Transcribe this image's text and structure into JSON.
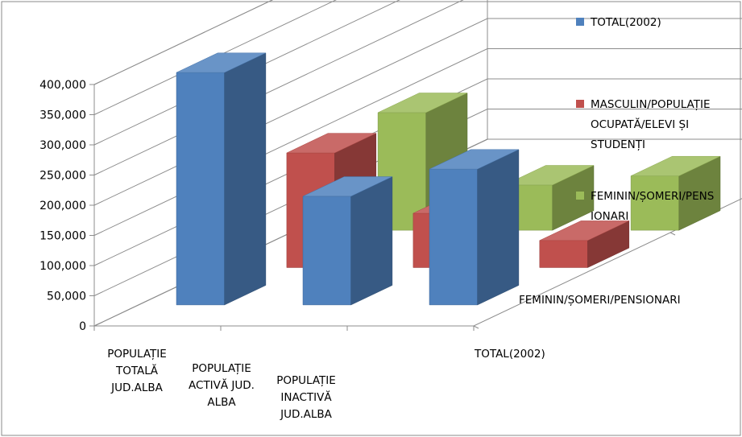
{
  "chart_data": {
    "type": "bar",
    "variant": "3d-clustered-column",
    "title": "",
    "xlabel": "",
    "ylabel": "",
    "ylim": [
      0,
      400000
    ],
    "yticks": [
      "0",
      "50,000",
      "100,000",
      "150,000",
      "200,000",
      "250,000",
      "300,000",
      "350,000",
      "400,000"
    ],
    "grid": true,
    "legend_position": "right",
    "categories": [
      [
        "POPULAȚIE",
        "TOTALĂ",
        "JUD.ALBA"
      ],
      [
        "POPULAȚIE",
        "ACTIVĂ JUD.",
        "ALBA"
      ],
      [
        "POPULAȚIE",
        "INACTIVĂ",
        "JUD.ALBA"
      ]
    ],
    "depth_labels": [
      "FEMININ/ȘOMERI/PENSIONARI",
      "TOTAL(2002)"
    ],
    "series": [
      {
        "name": "TOTAL(2002)",
        "legend_lines": [
          "TOTAL(2002)"
        ],
        "color": "#4f81bd",
        "values": [
          385000,
          180000,
          225000
        ]
      },
      {
        "name": "MASCULIN/POPULAȚIE OCUPATĂ/ELEVI ȘI STUDENȚI",
        "legend_lines": [
          "MASCULIN/POPULAȚIE",
          "OCUPATĂ/ELEVI  ȘI",
          "STUDENȚI"
        ],
        "color": "#c0504d",
        "values": [
          190000,
          90000,
          45000
        ]
      },
      {
        "name": "FEMININ/ȘOMERI/PENSIONARI",
        "legend_lines": [
          "FEMININ/ȘOMERI/PENS",
          "IONARI"
        ],
        "color": "#9bbb59",
        "values": [
          195000,
          75000,
          90000
        ]
      }
    ]
  }
}
